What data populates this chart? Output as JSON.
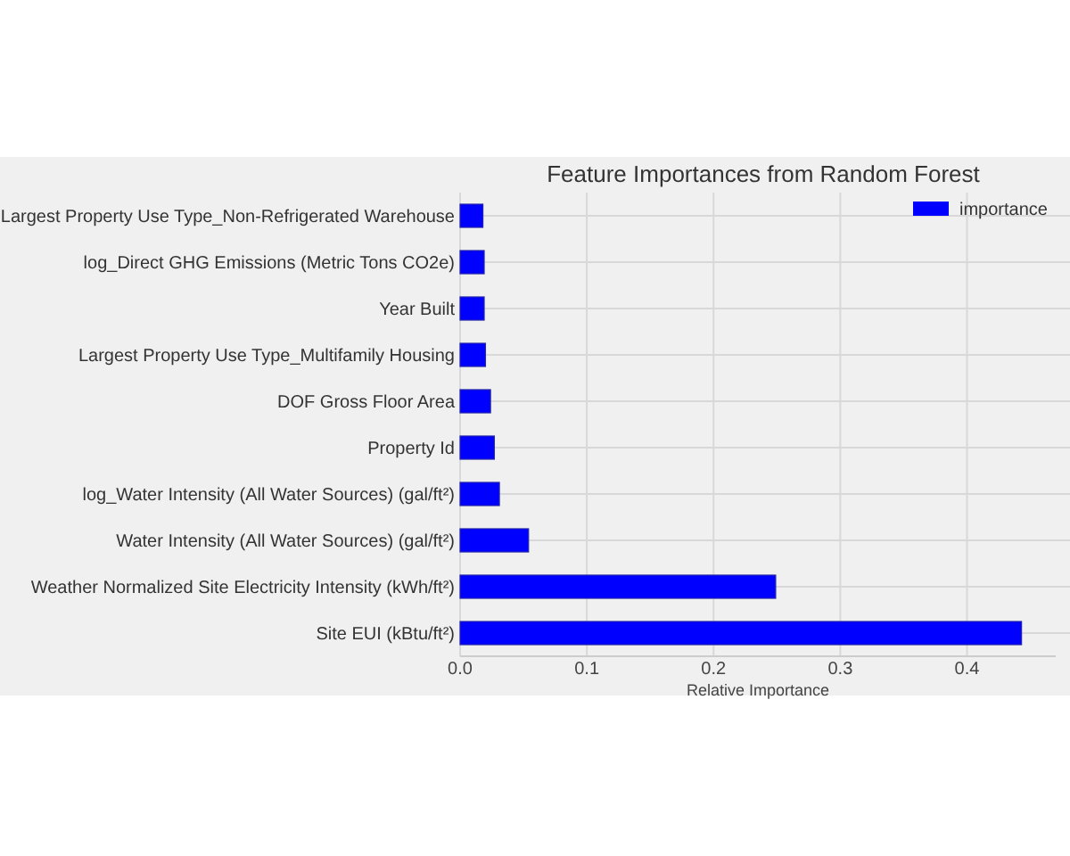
{
  "chart_data": {
    "type": "bar",
    "orientation": "horizontal",
    "title": "Feature Importances from Random Forest",
    "xlabel": "Relative Importance",
    "categories": [
      "Largest Property Use Type_Non-Refrigerated Warehouse",
      "log_Direct GHG Emissions (Metric Tons CO2e)",
      "Year Built",
      "Largest Property Use Type_Multifamily Housing",
      "DOF Gross Floor Area",
      "Property Id",
      "log_Water Intensity (All Water Sources) (gal/ft²)",
      "Water Intensity (All Water Sources) (gal/ft²)",
      "Weather Normalized Site Electricity Intensity (kWh/ft²)",
      "Site EUI (kBtu/ft²)"
    ],
    "series": [
      {
        "name": "importance",
        "color": "#0000ff",
        "values": [
          0.018,
          0.019,
          0.019,
          0.02,
          0.024,
          0.027,
          0.031,
          0.054,
          0.249,
          0.443
        ]
      }
    ],
    "xlim": [
      0,
      0.47
    ],
    "xticks": [
      {
        "value": 0,
        "label": "0.0"
      },
      0.1,
      0.2,
      0.3,
      0.4
    ],
    "grid": true,
    "legend": "top right"
  }
}
